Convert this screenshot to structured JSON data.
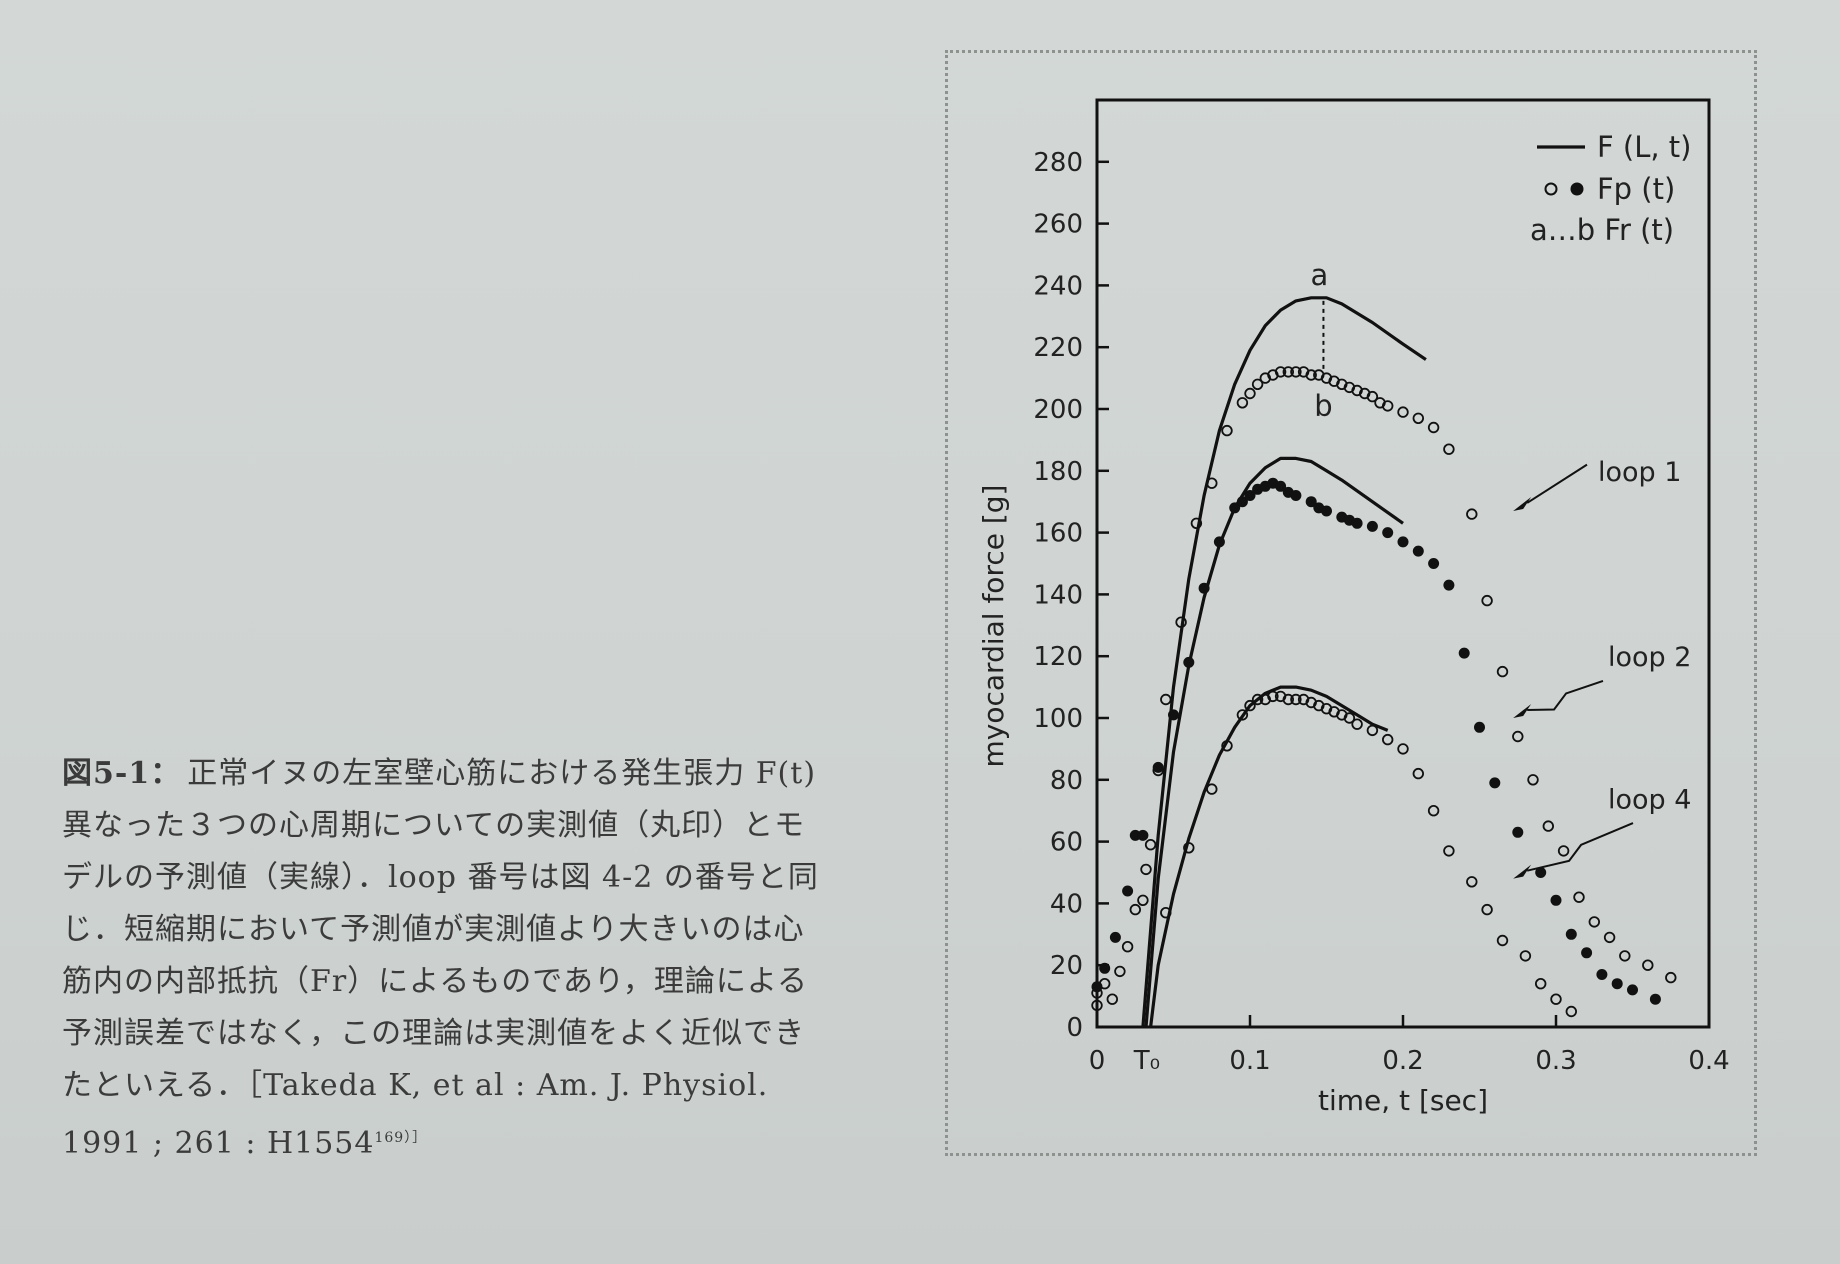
{
  "caption": {
    "label": "図5-1：",
    "lines": [
      "正常イヌの左室壁心筋における発生張力 F(t)",
      "異なった３つの心周期についての実測値（丸印）とモ",
      "デルの予測値（実線）．loop 番号は図 4-2 の番号と同",
      "じ．短縮期において予測値が実測値より大きいのは心",
      "筋内の内部抵抗（Fr）によるものであり，理論による",
      "予測誤差ではなく，この理論は実測値をよく近似でき",
      "たといえる．［Takeda K, et al : Am. J. Physiol.",
      "1991 ; 261 : H1554",
      "169）］"
    ]
  },
  "chart_data": {
    "type": "line",
    "xlabel": "time,  t  [sec]",
    "ylabel": "myocardial  force  [g]",
    "xlim": [
      0,
      0.4
    ],
    "ylim": [
      0,
      300
    ],
    "x_ticks": [
      "0",
      "T₀",
      "0.1",
      "0.2",
      "0.3",
      "0.4"
    ],
    "y_ticks": [
      "0",
      "20",
      "40",
      "60",
      "80",
      "100",
      "120",
      "140",
      "160",
      "180",
      "200",
      "220",
      "240",
      "260",
      "280"
    ],
    "legend": {
      "position": "top-right",
      "entries": [
        {
          "marker": "solid-line",
          "label": "F (L, t)"
        },
        {
          "marker": "open-and-filled-circles",
          "label": "Fp (t)"
        },
        {
          "marker": "dotted-a-b",
          "label": "a…b Fr (t)"
        }
      ]
    },
    "annotations": {
      "a": "a",
      "b": "b",
      "loop1": "loop  1",
      "loop2": "loop  2",
      "loop4": "loop  4",
      "Fr_segment": {
        "x": 0.148,
        "y_top": 235,
        "y_bottom": 212
      }
    },
    "series": [
      {
        "name": "loop 1",
        "model_line": [
          [
            0.03,
            0
          ],
          [
            0.04,
            62
          ],
          [
            0.05,
            110
          ],
          [
            0.06,
            145
          ],
          [
            0.07,
            172
          ],
          [
            0.08,
            193
          ],
          [
            0.09,
            208
          ],
          [
            0.1,
            219
          ],
          [
            0.11,
            227
          ],
          [
            0.12,
            232
          ],
          [
            0.13,
            235
          ],
          [
            0.14,
            236
          ],
          [
            0.15,
            236
          ],
          [
            0.16,
            234
          ],
          [
            0.18,
            228
          ],
          [
            0.2,
            221
          ],
          [
            0.215,
            216
          ]
        ],
        "points_marker": "open",
        "points": [
          [
            0,
            11
          ],
          [
            0,
            7
          ],
          [
            0.005,
            14
          ],
          [
            0.01,
            9
          ],
          [
            0.015,
            18
          ],
          [
            0.02,
            26
          ],
          [
            0.025,
            38
          ],
          [
            0.03,
            41
          ],
          [
            0.032,
            51
          ],
          [
            0.035,
            59
          ],
          [
            0.04,
            83
          ],
          [
            0.045,
            106
          ],
          [
            0.055,
            131
          ],
          [
            0.065,
            163
          ],
          [
            0.075,
            176
          ],
          [
            0.085,
            193
          ],
          [
            0.095,
            202
          ],
          [
            0.1,
            205
          ],
          [
            0.105,
            208
          ],
          [
            0.11,
            210
          ],
          [
            0.115,
            211
          ],
          [
            0.12,
            212
          ],
          [
            0.125,
            212
          ],
          [
            0.13,
            212
          ],
          [
            0.135,
            212
          ],
          [
            0.14,
            211
          ],
          [
            0.145,
            211
          ],
          [
            0.15,
            210
          ],
          [
            0.155,
            209
          ],
          [
            0.16,
            208
          ],
          [
            0.165,
            207
          ],
          [
            0.17,
            206
          ],
          [
            0.175,
            205
          ],
          [
            0.18,
            204
          ],
          [
            0.185,
            202
          ],
          [
            0.19,
            201
          ],
          [
            0.2,
            199
          ],
          [
            0.21,
            197
          ],
          [
            0.22,
            194
          ],
          [
            0.23,
            187
          ],
          [
            0.245,
            166
          ],
          [
            0.255,
            138
          ],
          [
            0.265,
            115
          ],
          [
            0.275,
            94
          ],
          [
            0.285,
            80
          ],
          [
            0.295,
            65
          ],
          [
            0.305,
            57
          ],
          [
            0.315,
            42
          ],
          [
            0.325,
            34
          ],
          [
            0.335,
            29
          ],
          [
            0.345,
            23
          ],
          [
            0.36,
            20
          ],
          [
            0.375,
            16
          ]
        ]
      },
      {
        "name": "loop 2",
        "model_line": [
          [
            0.032,
            0
          ],
          [
            0.04,
            48
          ],
          [
            0.05,
            89
          ],
          [
            0.06,
            117
          ],
          [
            0.07,
            139
          ],
          [
            0.08,
            156
          ],
          [
            0.09,
            168
          ],
          [
            0.1,
            176
          ],
          [
            0.11,
            181
          ],
          [
            0.12,
            184
          ],
          [
            0.13,
            184
          ],
          [
            0.14,
            183
          ],
          [
            0.15,
            180
          ],
          [
            0.16,
            177
          ],
          [
            0.18,
            170
          ],
          [
            0.2,
            163
          ]
        ],
        "points_marker": "filled",
        "points": [
          [
            0,
            13
          ],
          [
            0.005,
            19
          ],
          [
            0.012,
            29
          ],
          [
            0.02,
            44
          ],
          [
            0.025,
            62
          ],
          [
            0.03,
            62
          ],
          [
            0.04,
            84
          ],
          [
            0.05,
            101
          ],
          [
            0.06,
            118
          ],
          [
            0.07,
            142
          ],
          [
            0.08,
            157
          ],
          [
            0.09,
            168
          ],
          [
            0.095,
            170
          ],
          [
            0.1,
            172
          ],
          [
            0.105,
            174
          ],
          [
            0.11,
            175
          ],
          [
            0.115,
            176
          ],
          [
            0.12,
            175
          ],
          [
            0.125,
            173
          ],
          [
            0.13,
            172
          ],
          [
            0.14,
            170
          ],
          [
            0.145,
            168
          ],
          [
            0.15,
            167
          ],
          [
            0.16,
            165
          ],
          [
            0.165,
            164
          ],
          [
            0.17,
            163
          ],
          [
            0.18,
            162
          ],
          [
            0.19,
            160
          ],
          [
            0.2,
            157
          ],
          [
            0.21,
            154
          ],
          [
            0.22,
            150
          ],
          [
            0.23,
            143
          ],
          [
            0.24,
            121
          ],
          [
            0.25,
            97
          ],
          [
            0.26,
            79
          ],
          [
            0.275,
            63
          ],
          [
            0.29,
            50
          ],
          [
            0.3,
            41
          ],
          [
            0.31,
            30
          ],
          [
            0.32,
            24
          ],
          [
            0.33,
            17
          ],
          [
            0.34,
            14
          ],
          [
            0.35,
            12
          ],
          [
            0.365,
            9
          ]
        ]
      },
      {
        "name": "loop 4",
        "model_line": [
          [
            0.035,
            0
          ],
          [
            0.04,
            20
          ],
          [
            0.05,
            43
          ],
          [
            0.06,
            61
          ],
          [
            0.07,
            76
          ],
          [
            0.08,
            88
          ],
          [
            0.09,
            97
          ],
          [
            0.1,
            104
          ],
          [
            0.11,
            108
          ],
          [
            0.12,
            110
          ],
          [
            0.13,
            110
          ],
          [
            0.14,
            109
          ],
          [
            0.15,
            107
          ],
          [
            0.16,
            104
          ],
          [
            0.17,
            101
          ],
          [
            0.18,
            98
          ],
          [
            0.19,
            96
          ]
        ],
        "points_marker": "open",
        "points": [
          [
            0.045,
            37
          ],
          [
            0.06,
            58
          ],
          [
            0.075,
            77
          ],
          [
            0.085,
            91
          ],
          [
            0.095,
            101
          ],
          [
            0.1,
            104
          ],
          [
            0.105,
            106
          ],
          [
            0.11,
            106
          ],
          [
            0.115,
            107
          ],
          [
            0.12,
            107
          ],
          [
            0.125,
            106
          ],
          [
            0.13,
            106
          ],
          [
            0.135,
            106
          ],
          [
            0.14,
            105
          ],
          [
            0.145,
            104
          ],
          [
            0.15,
            103
          ],
          [
            0.155,
            102
          ],
          [
            0.16,
            101
          ],
          [
            0.165,
            100
          ],
          [
            0.17,
            98
          ],
          [
            0.18,
            96
          ],
          [
            0.19,
            93
          ],
          [
            0.2,
            90
          ],
          [
            0.21,
            82
          ],
          [
            0.22,
            70
          ],
          [
            0.23,
            57
          ],
          [
            0.245,
            47
          ],
          [
            0.255,
            38
          ],
          [
            0.265,
            28
          ],
          [
            0.28,
            23
          ],
          [
            0.29,
            14
          ],
          [
            0.3,
            9
          ],
          [
            0.31,
            5
          ]
        ]
      }
    ]
  }
}
